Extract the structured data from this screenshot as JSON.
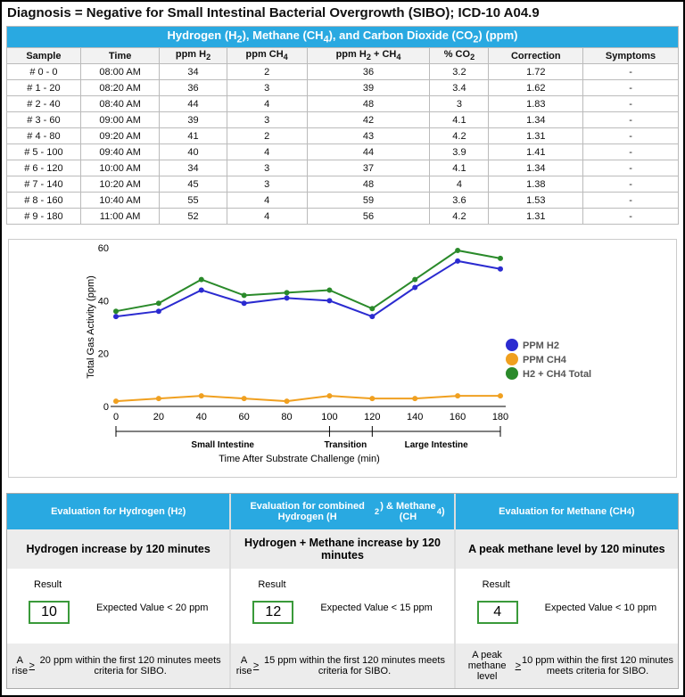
{
  "diagnosis": "Diagnosis = Negative for Small Intestinal Bacterial Overgrowth (SIBO); ICD-10 A04.9",
  "table": {
    "caption": "Hydrogen (H<sub>2</sub>), Methane (CH<sub>4</sub>), and Carbon Dioxide (CO<sub>2</sub>) (ppm)",
    "headers": [
      "Sample",
      "Time",
      "ppm H<sub>2</sub>",
      "ppm CH<sub>4</sub>",
      "ppm H<sub>2</sub> + CH<sub>4</sub>",
      "% CO<sub>2</sub>",
      "Correction",
      "Symptoms"
    ],
    "rows": [
      [
        "# 0 - 0",
        "08:00 AM",
        "34",
        "2",
        "36",
        "3.2",
        "1.72",
        "-"
      ],
      [
        "# 1 - 20",
        "08:20 AM",
        "36",
        "3",
        "39",
        "3.4",
        "1.62",
        "-"
      ],
      [
        "# 2 - 40",
        "08:40 AM",
        "44",
        "4",
        "48",
        "3",
        "1.83",
        "-"
      ],
      [
        "# 3 - 60",
        "09:00 AM",
        "39",
        "3",
        "42",
        "4.1",
        "1.34",
        "-"
      ],
      [
        "# 4 - 80",
        "09:20 AM",
        "41",
        "2",
        "43",
        "4.2",
        "1.31",
        "-"
      ],
      [
        "# 5 - 100",
        "09:40 AM",
        "40",
        "4",
        "44",
        "3.9",
        "1.41",
        "-"
      ],
      [
        "# 6 - 120",
        "10:00 AM",
        "34",
        "3",
        "37",
        "4.1",
        "1.34",
        "-"
      ],
      [
        "# 7 - 140",
        "10:20 AM",
        "45",
        "3",
        "48",
        "4",
        "1.38",
        "-"
      ],
      [
        "# 8 - 160",
        "10:40 AM",
        "55",
        "4",
        "59",
        "3.6",
        "1.53",
        "-"
      ],
      [
        "# 9 - 180",
        "11:00 AM",
        "52",
        "4",
        "56",
        "4.2",
        "1.31",
        "-"
      ]
    ]
  },
  "chart_data": {
    "type": "line",
    "x": [
      0,
      20,
      40,
      60,
      80,
      100,
      120,
      140,
      160,
      180
    ],
    "series": [
      {
        "name": "PPM H2",
        "color": "#2b2bd0",
        "values": [
          34,
          36,
          44,
          39,
          41,
          40,
          34,
          45,
          55,
          52
        ]
      },
      {
        "name": "PPM CH4",
        "color": "#f0a020",
        "values": [
          2,
          3,
          4,
          3,
          2,
          4,
          3,
          3,
          4,
          4
        ]
      },
      {
        "name": "H2 + CH4 Total",
        "color": "#2a8a2a",
        "values": [
          36,
          39,
          48,
          42,
          43,
          44,
          37,
          48,
          59,
          56
        ]
      }
    ],
    "xlabel": "Time After Substrate Challenge (min)",
    "ylabel": "Total Gas Activity (ppm)",
    "xlim": [
      0,
      180
    ],
    "ylim": [
      0,
      60
    ],
    "yticks": [
      0,
      20,
      40,
      60
    ],
    "regions": [
      {
        "label": "Small Intestine",
        "from": 0,
        "to": 100
      },
      {
        "label": "Transition",
        "from": 100,
        "to": 120
      },
      {
        "label": "Large Intestine",
        "from": 120,
        "to": 180
      }
    ],
    "legend": "right",
    "grid": false
  },
  "evaluation": [
    {
      "header": "Evaluation for Hydrogen (H<sub>2</sub>)",
      "subtitle": "Hydrogen increase by 120 minutes",
      "result_label": "Result",
      "result": "10",
      "expected": "Expected Value < 20 ppm",
      "footer": "A rise <u>&gt;</u> 20 ppm within the first 120 minutes meets criteria for SIBO."
    },
    {
      "header": "Evaluation for combined Hydrogen (H<sub>2</sub>) &amp; Methane (CH<sub>4</sub>)",
      "subtitle": "Hydrogen + Methane increase by 120 minutes",
      "result_label": "Result",
      "result": "12",
      "expected": "Expected Value < 15 ppm",
      "footer": "A rise <u>&gt;</u> 15 ppm within the first 120 minutes meets criteria for SIBO."
    },
    {
      "header": "Evaluation for Methane (CH<sub>4</sub>)",
      "subtitle": "A peak methane level by 120 minutes",
      "result_label": "Result",
      "result": "4",
      "expected": "Expected Value < 10 ppm",
      "footer": "A peak methane level <u>&gt;</u> 10 ppm within the first 120 minutes meets criteria for SIBO."
    }
  ]
}
